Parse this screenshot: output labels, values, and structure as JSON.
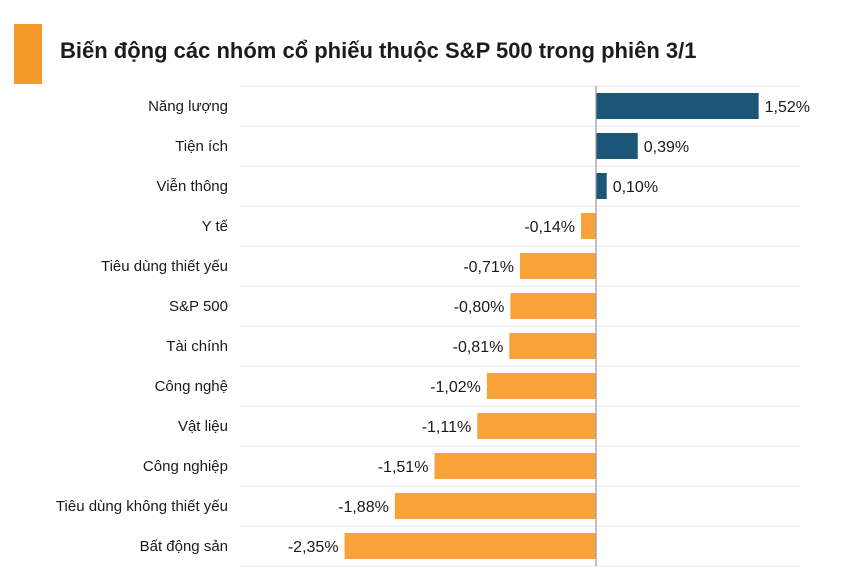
{
  "title": "Biến động các nhóm cổ phiếu thuộc S&P 500 trong phiên 3/1",
  "colors": {
    "accent": "#f39a2b",
    "positive": "#1b5679",
    "negative": "#f9a23a",
    "grid": "#e6e6e6",
    "axis": "#9a9a9a"
  },
  "chart_data": {
    "type": "bar",
    "orientation": "horizontal",
    "categories": [
      "Năng lượng",
      "Tiện ích",
      "Viễn thông",
      "Y tế",
      "Tiêu dùng thiết yếu",
      "S&P 500",
      "Tài chính",
      "Công nghệ",
      "Vật liệu",
      "Công nghiệp",
      "Tiêu dùng không thiết yếu",
      "Bất động sản"
    ],
    "values": [
      1.52,
      0.39,
      0.1,
      -0.14,
      -0.71,
      -0.8,
      -0.81,
      -1.02,
      -1.11,
      -1.51,
      -1.88,
      -2.35
    ],
    "value_labels": [
      "1,52%",
      "0,39%",
      "0,10%",
      "-0,14%",
      "-0,71%",
      "-0,80%",
      "-0,81%",
      "-1,02%",
      "-1,11%",
      "-1,51%",
      "-1,88%",
      "-2,35%"
    ],
    "grid": true
  }
}
